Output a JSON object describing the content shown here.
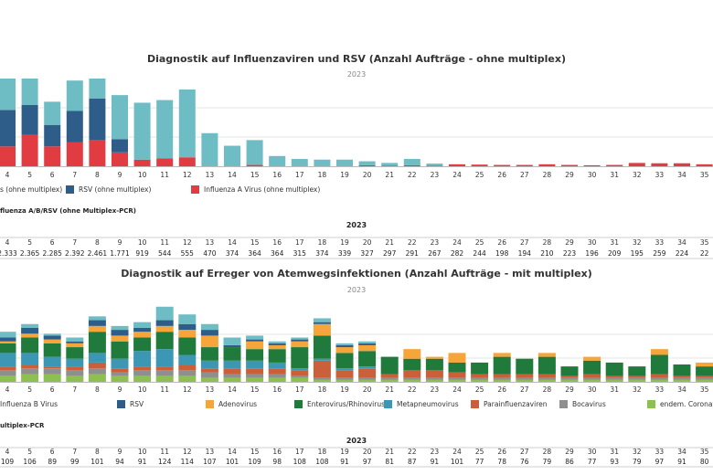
{
  "chart_data": [
    {
      "type": "bar",
      "stacked": true,
      "title": "Diagnostik auf Influenzaviren und RSV (Anzahl Aufträge - ohne multiplex)",
      "subtitle": "2023",
      "categories": [
        "4",
        "5",
        "6",
        "7",
        "8",
        "9",
        "10",
        "11",
        "12",
        "13",
        "14",
        "15",
        "16",
        "17",
        "18",
        "19",
        "20",
        "21",
        "22",
        "23",
        "24",
        "25",
        "26",
        "27",
        "28",
        "29",
        "30",
        "31",
        "32",
        "33",
        "34",
        "35"
      ],
      "series": [
        {
          "name": "Influenza A Virus (ohne multiplex)",
          "color": "#e03c41",
          "values": [
            60,
            95,
            60,
            72,
            80,
            42,
            20,
            24,
            27,
            0,
            0,
            4,
            0,
            0,
            0,
            0,
            3,
            2,
            3,
            2,
            6,
            5,
            4,
            4,
            6,
            4,
            3,
            4,
            10,
            9,
            9,
            6
          ]
        },
        {
          "name": "RSV (ohne multiplex)",
          "color": "#2f5d8a",
          "values": [
            110,
            90,
            65,
            95,
            125,
            40,
            0,
            0,
            0,
            0,
            0,
            0,
            0,
            0,
            0,
            0,
            0,
            0,
            0,
            0,
            0,
            0,
            0,
            0,
            0,
            0,
            0,
            0,
            0,
            0,
            0,
            0
          ]
        },
        {
          "name": "Influenza B Virus (ohne multiplex)",
          "color": "#6fbdc4",
          "values": [
            95,
            83,
            70,
            92,
            90,
            133,
            172,
            176,
            205,
            100,
            62,
            75,
            31,
            22,
            20,
            20,
            12,
            8,
            19,
            6,
            0,
            0,
            0,
            0,
            0,
            0,
            0,
            0,
            0,
            0,
            0,
            0
          ]
        }
      ],
      "legend": {
        "position": "bottom"
      }
    },
    {
      "type": "table",
      "title": "fluenza A/B/RSV (ohne Multiplex-PCR)",
      "year": "2023",
      "columns": [
        "4",
        "5",
        "6",
        "7",
        "8",
        "9",
        "10",
        "11",
        "12",
        "13",
        "14",
        "15",
        "16",
        "17",
        "18",
        "19",
        "20",
        "21",
        "22",
        "23",
        "24",
        "25",
        "26",
        "27",
        "28",
        "29",
        "30",
        "31",
        "32",
        "33",
        "34",
        "35"
      ],
      "values": [
        "2.333",
        "2.365",
        "2.285",
        "2.392",
        "2.461",
        "1.771",
        "919",
        "544",
        "555",
        "470",
        "374",
        "364",
        "364",
        "315",
        "374",
        "339",
        "327",
        "297",
        "291",
        "267",
        "282",
        "244",
        "198",
        "194",
        "210",
        "223",
        "196",
        "209",
        "195",
        "259",
        "224",
        "22"
      ]
    },
    {
      "type": "bar",
      "stacked": true,
      "title": "Diagnostik auf Erreger von Atemwegsinfektionen (Anzahl Aufträge - mit multiplex)",
      "subtitle": "2023",
      "categories": [
        "4",
        "5",
        "6",
        "7",
        "8",
        "9",
        "10",
        "11",
        "12",
        "13",
        "14",
        "15",
        "16",
        "17",
        "18",
        "19",
        "20",
        "21",
        "22",
        "23",
        "24",
        "25",
        "26",
        "27",
        "28",
        "29",
        "30",
        "31",
        "32",
        "33",
        "34",
        "35"
      ],
      "series": [
        {
          "name": "endem. Coronaviren",
          "color": "#8cc152",
          "values": [
            3,
            4,
            4,
            3,
            4,
            3,
            3,
            3,
            3,
            2,
            2,
            2,
            2,
            2,
            1,
            1,
            1,
            1,
            1,
            1,
            1,
            1,
            1,
            1,
            1,
            1,
            1,
            1,
            1,
            1,
            1,
            1
          ]
        },
        {
          "name": "Bocavirus",
          "color": "#8f8f8f",
          "values": [
            3,
            3,
            3,
            3,
            3,
            2,
            3,
            3,
            3,
            3,
            2,
            2,
            2,
            1,
            1,
            1,
            1,
            1,
            1,
            1,
            1,
            1,
            1,
            1,
            1,
            1,
            1,
            1,
            1,
            1,
            1,
            1
          ]
        },
        {
          "name": "Parainfluenzaviren",
          "color": "#c9603a",
          "values": [
            2,
            2,
            1,
            2,
            3,
            2,
            2,
            2,
            3,
            2,
            3,
            3,
            3,
            3,
            9,
            4,
            5,
            2,
            4,
            4,
            3,
            2,
            2,
            2,
            2,
            1,
            2,
            1,
            1,
            2,
            1,
            1
          ]
        },
        {
          "name": "Metapneumovirus",
          "color": "#3c97b5",
          "values": [
            7,
            6,
            5,
            4,
            5,
            5,
            8,
            9,
            5,
            4,
            4,
            4,
            3,
            1,
            1,
            1,
            1,
            0,
            0,
            0,
            0,
            0,
            0,
            0,
            0,
            0,
            0,
            0,
            0,
            0,
            0,
            0
          ]
        },
        {
          "name": "Enterovirus/Rhinovirus",
          "color": "#1f7a3c",
          "values": [
            5,
            8,
            7,
            6,
            11,
            9,
            7,
            9,
            9,
            7,
            7,
            6,
            7,
            11,
            12,
            8,
            8,
            9,
            6,
            6,
            5,
            6,
            9,
            8,
            9,
            5,
            7,
            7,
            5,
            10,
            6,
            5
          ]
        },
        {
          "name": "Adenovirus",
          "color": "#f5a53a",
          "values": [
            1,
            2,
            2,
            2,
            3,
            3,
            3,
            3,
            4,
            6,
            0,
            4,
            2,
            3,
            6,
            3,
            3,
            0,
            5,
            1,
            5,
            0,
            2,
            0,
            2,
            0,
            2,
            0,
            0,
            3,
            0,
            2
          ]
        },
        {
          "name": "RSV",
          "color": "#2f5d8a",
          "values": [
            2,
            3,
            2,
            1,
            3,
            3,
            2,
            3,
            3,
            3,
            1,
            1,
            1,
            1,
            1,
            1,
            1,
            0,
            0,
            0,
            0,
            0,
            0,
            0,
            0,
            0,
            0,
            0,
            0,
            0,
            0,
            0
          ]
        },
        {
          "name": "Influenza B Virus",
          "color": "#6fbdc4",
          "values": [
            3,
            2,
            1,
            2,
            2,
            2,
            3,
            7,
            5,
            3,
            4,
            2,
            1,
            1,
            2,
            1,
            1,
            0,
            0,
            0,
            0,
            0,
            0,
            0,
            0,
            0,
            0,
            0,
            0,
            0,
            0,
            0
          ]
        }
      ],
      "legend": {
        "position": "bottom"
      }
    },
    {
      "type": "table",
      "title": "ultiplex-PCR",
      "year": "2023",
      "columns": [
        "4",
        "5",
        "6",
        "7",
        "8",
        "9",
        "10",
        "11",
        "12",
        "13",
        "14",
        "15",
        "16",
        "17",
        "18",
        "19",
        "20",
        "21",
        "22",
        "23",
        "24",
        "25",
        "26",
        "27",
        "28",
        "29",
        "30",
        "31",
        "32",
        "33",
        "34",
        "35"
      ],
      "values": [
        "109",
        "106",
        "89",
        "99",
        "101",
        "94",
        "91",
        "124",
        "114",
        "107",
        "101",
        "109",
        "98",
        "108",
        "108",
        "91",
        "97",
        "81",
        "87",
        "91",
        "101",
        "77",
        "78",
        "76",
        "79",
        "86",
        "77",
        "93",
        "79",
        "97",
        "91",
        "80"
      ]
    }
  ],
  "legends": {
    "top": [
      {
        "label": "s (ohne multiplex)",
        "color": "#6fbdc4"
      },
      {
        "label": "RSV (ohne multiplex)",
        "color": "#2f5d8a"
      },
      {
        "label": "Influenza A Virus (ohne multiplex)",
        "color": "#e03c41"
      }
    ],
    "bottom": [
      {
        "label": "Influenza B Virus",
        "color": "#6fbdc4"
      },
      {
        "label": "RSV",
        "color": "#2f5d8a"
      },
      {
        "label": "Adenovirus",
        "color": "#f5a53a"
      },
      {
        "label": "Enterovirus/Rhinovirus",
        "color": "#1f7a3c"
      },
      {
        "label": "Metapneumovirus",
        "color": "#3c97b5"
      },
      {
        "label": "Parainfluenzaviren",
        "color": "#c9603a"
      },
      {
        "label": "Bocavirus",
        "color": "#8f8f8f"
      },
      {
        "label": "endem. Coronaviren",
        "color": "#8cc152"
      }
    ]
  }
}
